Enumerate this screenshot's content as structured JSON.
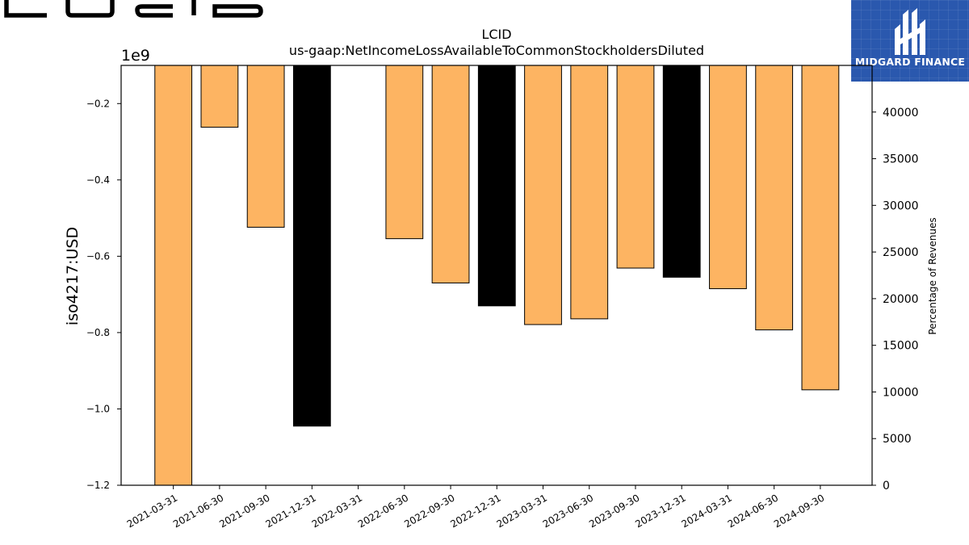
{
  "logo": {
    "left_text": "LUCID",
    "right_brand": "MIDGARD FINANCE"
  },
  "chart_data": {
    "type": "bar",
    "title": "LCID",
    "subtitle": "us-gaap:NetIncomeLossAvailableToCommonStockholdersDiluted",
    "ylabel": "iso4217:USD",
    "y_offset_label": "1e9",
    "y2label": "Percentage of Revenues",
    "ylim": [
      -1.2,
      -0.1
    ],
    "y_ticks": [
      -1.2,
      -1.0,
      -0.8,
      -0.6,
      -0.4,
      -0.2
    ],
    "y2lim": [
      0,
      45000
    ],
    "y2_ticks": [
      0,
      5000,
      10000,
      15000,
      20000,
      25000,
      30000,
      35000,
      40000
    ],
    "grid": false,
    "categories": [
      "2021-03-31",
      "2021-06-30",
      "2021-09-30",
      "2021-12-31",
      "2022-03-31",
      "2022-06-30",
      "2022-09-30",
      "2022-12-31",
      "2023-03-31",
      "2023-06-30",
      "2023-09-30",
      "2023-12-31",
      "2024-03-31",
      "2024-06-30",
      "2024-09-30"
    ],
    "values": [
      -1.2,
      -0.262,
      -0.524,
      -1.045,
      null,
      -0.554,
      -0.67,
      -0.73,
      -0.779,
      -0.764,
      -0.631,
      -0.655,
      -0.685,
      -0.793,
      -0.95
    ],
    "bar_kinds": [
      "q",
      "q",
      "q",
      "fy",
      null,
      "q",
      "q",
      "fy",
      "q",
      "q",
      "q",
      "fy",
      "q",
      "q",
      "q"
    ],
    "colors": {
      "q": "#fdb462",
      "fy": "#000000",
      "axis": "#000000"
    }
  }
}
